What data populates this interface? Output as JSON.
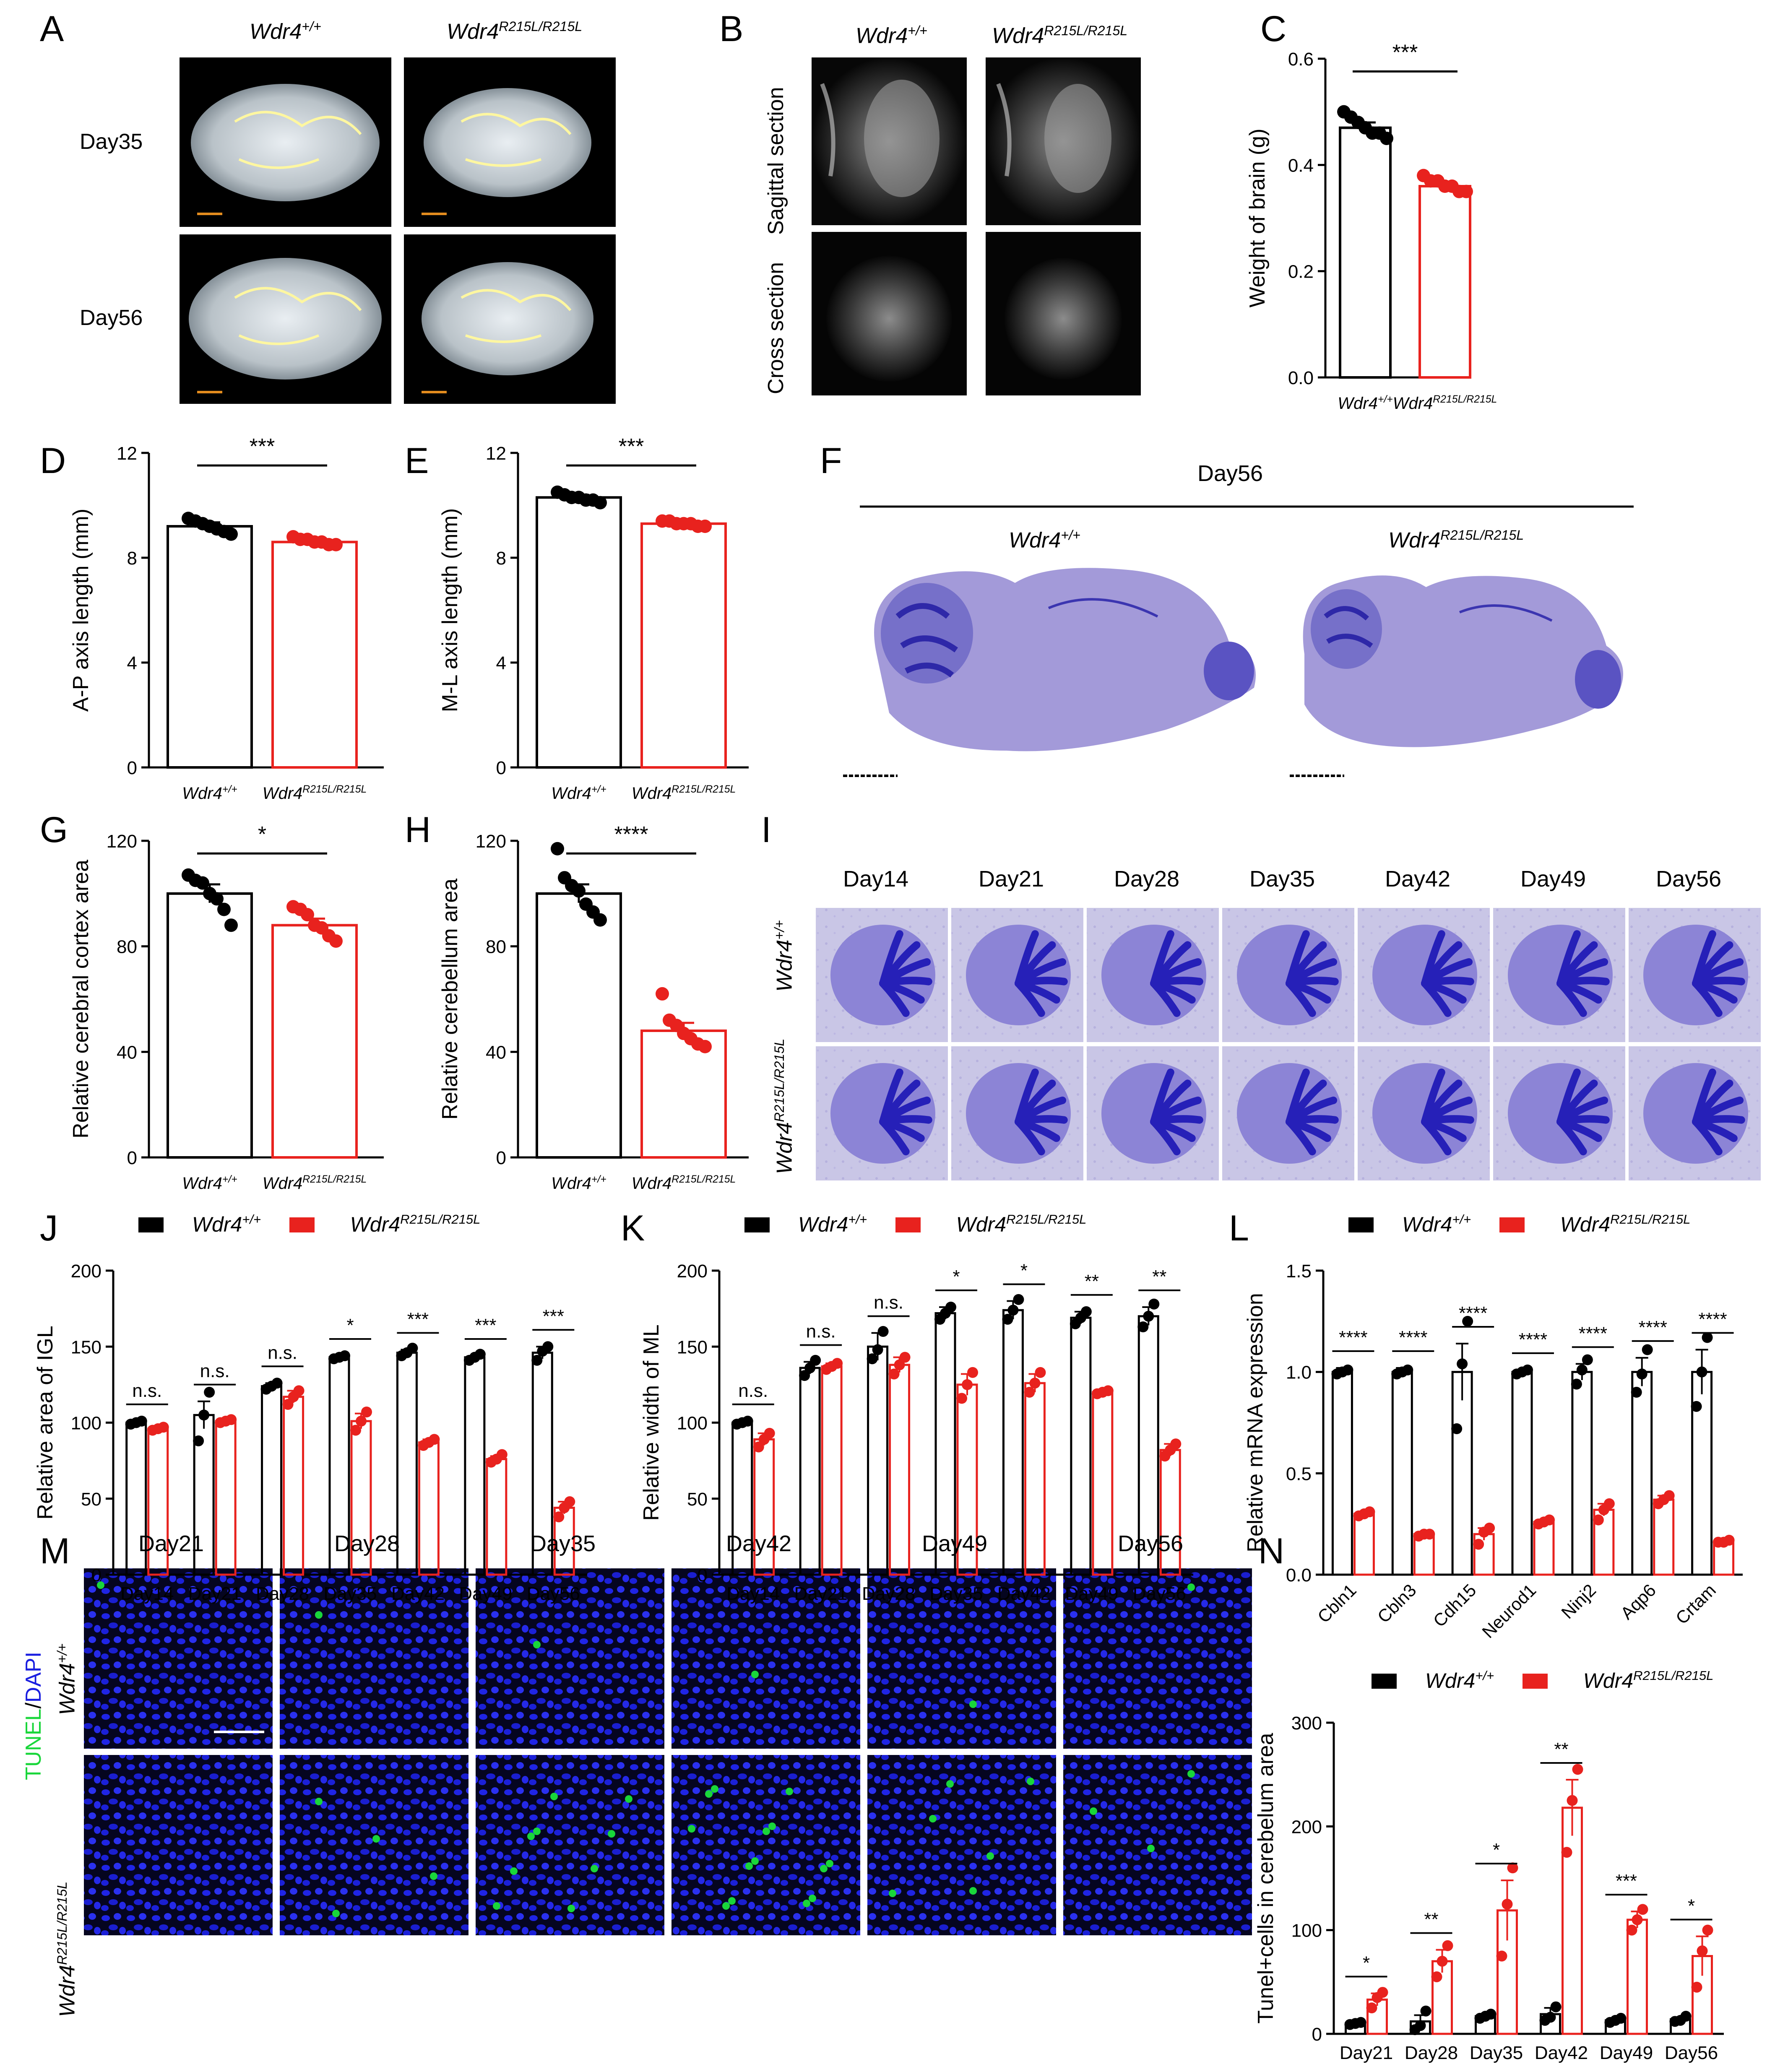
{
  "panel_labels": [
    "A",
    "B",
    "C",
    "D",
    "E",
    "F",
    "G",
    "H",
    "I",
    "J",
    "K",
    "L",
    "M",
    "N"
  ],
  "genotypes": {
    "wt_base": "Wdr4",
    "wt_sup": "+/+",
    "mut_base": "Wdr4",
    "mut_sup": "R215L/R215L"
  },
  "panelA": {
    "rows": [
      "Day35",
      "Day56"
    ]
  },
  "panelB": {
    "rows": [
      "Sagittal section",
      "Cross section"
    ]
  },
  "panelF": {
    "title": "Day56"
  },
  "panelI": {
    "days": [
      "Day14",
      "Day21",
      "Day28",
      "Day35",
      "Day42",
      "Day49",
      "Day56"
    ]
  },
  "panelM": {
    "days": [
      "Day21",
      "Day28",
      "Day35",
      "Day42",
      "Day49",
      "Day56"
    ],
    "stain_label_1": "TUNEL",
    "stain_label_sep": "/",
    "stain_label_2": "DAPI",
    "stain_colors": {
      "tunel": "#19d63a",
      "dapi": "#1a1ee0"
    }
  },
  "colors": {
    "wt": "#000000",
    "mut": "#e8221e"
  },
  "chart_data": [
    {
      "id": "C",
      "type": "bar",
      "categories": [
        "Wdr4+/+",
        "Wdr4R215L/R215L"
      ],
      "values": [
        0.47,
        0.36
      ],
      "errors": [
        0.01,
        0.008
      ],
      "points": [
        [
          0.5,
          0.49,
          0.48,
          0.47,
          0.46,
          0.46,
          0.45
        ],
        [
          0.38,
          0.37,
          0.37,
          0.36,
          0.36,
          0.35,
          0.35
        ]
      ],
      "ylabel": "Weight of brain (g)",
      "ylim": [
        0,
        0.6
      ],
      "yticks": [
        "0.0",
        "0.2",
        "0.4",
        "0.6"
      ],
      "tick_values": [
        0,
        0.2,
        0.4,
        0.6
      ],
      "significance": "***"
    },
    {
      "id": "D",
      "type": "bar",
      "categories": [
        "Wdr4+/+",
        "Wdr4R215L/R215L"
      ],
      "values": [
        9.2,
        8.6
      ],
      "errors": [
        0.15,
        0.1
      ],
      "points": [
        [
          9.5,
          9.4,
          9.3,
          9.2,
          9.1,
          9.0,
          8.9
        ],
        [
          8.8,
          8.7,
          8.7,
          8.6,
          8.6,
          8.5,
          8.5
        ]
      ],
      "ylabel": "A-P axis length (mm)",
      "ylim": [
        0,
        12
      ],
      "yticks": [
        "0",
        "4",
        "8",
        "12"
      ],
      "tick_values": [
        0,
        4,
        8,
        12
      ],
      "significance": "***"
    },
    {
      "id": "E",
      "type": "bar",
      "categories": [
        "Wdr4+/+",
        "Wdr4R215L/R215L"
      ],
      "values": [
        10.3,
        9.3
      ],
      "errors": [
        0.1,
        0.06
      ],
      "points": [
        [
          10.5,
          10.4,
          10.3,
          10.3,
          10.2,
          10.2,
          10.1
        ],
        [
          9.4,
          9.4,
          9.3,
          9.3,
          9.3,
          9.2,
          9.2
        ]
      ],
      "ylabel": "M-L axis length (mm)",
      "ylim": [
        0,
        12
      ],
      "yticks": [
        "0",
        "4",
        "8",
        "12"
      ],
      "tick_values": [
        0,
        4,
        8,
        12
      ],
      "significance": "***"
    },
    {
      "id": "G",
      "type": "bar",
      "categories": [
        "Wdr4+/+",
        "Wdr4R215L/R215L"
      ],
      "values": [
        100,
        88
      ],
      "errors": [
        3.5,
        2.5
      ],
      "points": [
        [
          107,
          105,
          104,
          100,
          98,
          94,
          88
        ],
        [
          95,
          94,
          92,
          88,
          87,
          84,
          82
        ]
      ],
      "ylabel": "Relative cerebral cortex area",
      "ylim": [
        0,
        120
      ],
      "yticks": [
        "0",
        "40",
        "80",
        "120"
      ],
      "tick_values": [
        0,
        40,
        80,
        120
      ],
      "significance": "*"
    },
    {
      "id": "H",
      "type": "bar",
      "categories": [
        "Wdr4+/+",
        "Wdr4R215L/R215L"
      ],
      "values": [
        100,
        48
      ],
      "errors": [
        3.5,
        3
      ],
      "points": [
        [
          117,
          106,
          103,
          101,
          96,
          93,
          90
        ],
        [
          62,
          52,
          50,
          47,
          45,
          43,
          42
        ]
      ],
      "ylabel": "Relative cerebellum area",
      "ylim": [
        0,
        120
      ],
      "yticks": [
        "0",
        "40",
        "80",
        "120"
      ],
      "tick_values": [
        0,
        40,
        80,
        120
      ],
      "significance": "****"
    },
    {
      "id": "J",
      "type": "bar",
      "categories": [
        "Day14",
        "Day21",
        "Day28",
        "Day35",
        "Day42",
        "Day49",
        "Day56"
      ],
      "series": [
        {
          "name": "Wdr4+/+",
          "values": [
            100,
            105,
            124,
            143,
            146,
            143,
            146
          ],
          "errors": [
            1,
            9,
            2,
            1,
            2,
            1,
            4
          ],
          "points": [
            [
              99,
              100,
              101
            ],
            [
              88,
              105,
              120
            ],
            [
              122,
              124,
              126
            ],
            [
              142,
              143,
              144
            ],
            [
              144,
              146,
              149
            ],
            [
              141,
              143,
              145
            ],
            [
              141,
              147,
              150
            ]
          ]
        },
        {
          "name": "Wdr4R215L/R215L",
          "values": [
            96,
            101,
            117,
            101,
            87,
            76,
            44
          ],
          "errors": [
            1,
            1,
            4,
            5,
            2,
            2,
            4
          ],
          "points": [
            [
              95,
              96,
              97
            ],
            [
              100,
              101,
              102
            ],
            [
              112,
              117,
              121
            ],
            [
              95,
              101,
              107
            ],
            [
              85,
              87,
              89
            ],
            [
              74,
              76,
              79
            ],
            [
              38,
              44,
              48
            ]
          ]
        }
      ],
      "ylabel": "Relative  area of IGL",
      "ylim": [
        0,
        200
      ],
      "yticks": [
        "0",
        "50",
        "100",
        "150",
        "200"
      ],
      "tick_values": [
        0,
        50,
        100,
        150,
        200
      ],
      "significance": [
        "n.s.",
        "n.s.",
        "n.s.",
        "*",
        "***",
        "***",
        "***"
      ]
    },
    {
      "id": "K",
      "type": "bar",
      "categories": [
        "Day14",
        "Day21",
        "Day28",
        "Day35",
        "Day42",
        "Day49",
        "Day56"
      ],
      "series": [
        {
          "name": "Wdr4+/+",
          "values": [
            100,
            136,
            150,
            172,
            174,
            169,
            170
          ],
          "errors": [
            1,
            4,
            9,
            4,
            6,
            4,
            6
          ],
          "points": [
            [
              99,
              100,
              101
            ],
            [
              131,
              136,
              141
            ],
            [
              142,
              148,
              160
            ],
            [
              168,
              172,
              176
            ],
            [
              168,
              174,
              181
            ],
            [
              165,
              169,
              173
            ],
            [
              163,
              170,
              178
            ]
          ]
        },
        {
          "name": "Wdr4R215L/R215L",
          "values": [
            89,
            137,
            138,
            125,
            126,
            120,
            82
          ],
          "errors": [
            4,
            2,
            5,
            7,
            6,
            1,
            4
          ],
          "points": [
            [
              84,
              89,
              93
            ],
            [
              135,
              137,
              139
            ],
            [
              132,
              138,
              143
            ],
            [
              116,
              125,
              133
            ],
            [
              120,
              126,
              133
            ],
            [
              119,
              120,
              121
            ],
            [
              78,
              82,
              86
            ]
          ]
        }
      ],
      "ylabel": "Relative width of ML",
      "ylim": [
        0,
        200
      ],
      "yticks": [
        "0",
        "50",
        "100",
        "150",
        "200"
      ],
      "tick_values": [
        0,
        50,
        100,
        150,
        200
      ],
      "significance": [
        "n.s.",
        "n.s.",
        "n.s.",
        "*",
        "*",
        "**",
        "**"
      ]
    },
    {
      "id": "L",
      "type": "bar",
      "categories": [
        "Cbln1",
        "Cbln3",
        "Cdh15",
        "Neurod1",
        "Ninj2",
        "Aqp6",
        "Crtam"
      ],
      "series": [
        {
          "name": "Wdr4+/+",
          "values": [
            1.0,
            1.0,
            1.0,
            1.0,
            1.0,
            1.0,
            1.0
          ],
          "errors": [
            0.02,
            0.02,
            0.14,
            0.01,
            0.04,
            0.07,
            0.11
          ],
          "points": [
            [
              0.99,
              1.0,
              1.01
            ],
            [
              0.99,
              1.0,
              1.01
            ],
            [
              0.72,
              1.04,
              1.25
            ],
            [
              0.99,
              1.0,
              1.01
            ],
            [
              0.94,
              1.01,
              1.06
            ],
            [
              0.9,
              0.99,
              1.11
            ],
            [
              0.83,
              1.0,
              1.17
            ]
          ]
        },
        {
          "name": "Wdr4R215L/R215L",
          "values": [
            0.3,
            0.2,
            0.2,
            0.26,
            0.32,
            0.37,
            0.16
          ],
          "errors": [
            0.01,
            0.005,
            0.03,
            0.01,
            0.03,
            0.02,
            0.005
          ],
          "points": [
            [
              0.29,
              0.3,
              0.31
            ],
            [
              0.19,
              0.2,
              0.2
            ],
            [
              0.15,
              0.21,
              0.23
            ],
            [
              0.25,
              0.26,
              0.27
            ],
            [
              0.27,
              0.32,
              0.35
            ],
            [
              0.35,
              0.37,
              0.39
            ],
            [
              0.16,
              0.16,
              0.17
            ]
          ]
        }
      ],
      "ylabel": "Relative mRNA  expression",
      "ylim": [
        0,
        1.5
      ],
      "yticks": [
        "0.0",
        "0.5",
        "1.0",
        "1.5"
      ],
      "tick_values": [
        0,
        0.5,
        1.0,
        1.5
      ],
      "significance": [
        "****",
        "****",
        "****",
        "****",
        "****",
        "****",
        "****"
      ]
    },
    {
      "id": "N",
      "type": "bar",
      "categories": [
        "Day21",
        "Day28",
        "Day35",
        "Day42",
        "Day49",
        "Day56"
      ],
      "series": [
        {
          "name": "Wdr4+/+",
          "values": [
            10,
            12,
            17,
            19,
            13,
            14
          ],
          "errors": [
            1,
            6,
            2,
            6,
            2,
            2
          ],
          "points": [
            [
              9,
              10,
              11
            ],
            [
              4,
              8,
              22
            ],
            [
              15,
              17,
              19
            ],
            [
              13,
              16,
              26
            ],
            [
              11,
              13,
              15
            ],
            [
              12,
              13,
              17
            ]
          ]
        },
        {
          "name": "Wdr4R215L/R215L",
          "values": [
            33,
            70,
            119,
            218,
            110,
            75
          ],
          "errors": [
            6,
            11,
            29,
            27,
            8,
            19
          ],
          "points": [
            [
              25,
              35,
              40
            ],
            [
              55,
              70,
              85
            ],
            [
              75,
              125,
              160
            ],
            [
              175,
              225,
              255
            ],
            [
              100,
              110,
              120
            ],
            [
              45,
              80,
              100
            ]
          ]
        }
      ],
      "ylabel": "Tunel+cells in cerebelum area",
      "ylim": [
        0,
        300
      ],
      "yticks": [
        "0",
        "100",
        "200",
        "300"
      ],
      "tick_values": [
        0,
        100,
        200,
        300
      ],
      "significance": [
        "*",
        "**",
        "*",
        "**",
        "***",
        "*"
      ]
    }
  ]
}
